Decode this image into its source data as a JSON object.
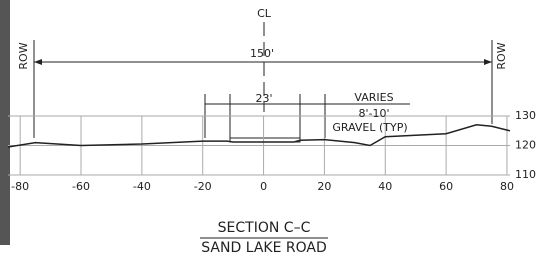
{
  "chart_data": {
    "type": "line",
    "title": "SECTION C–C",
    "subtitle": "SAND LAKE ROAD",
    "annotations": {
      "centerline": "CL",
      "row_left": "ROW",
      "row_right": "ROW",
      "width": "150'",
      "pavement": "23'",
      "varies": "VARIES",
      "shoulder": "8'-10'",
      "material": "GRAVEL (TYP)"
    },
    "x": [
      -84,
      -75,
      -60,
      -40,
      -20,
      -12,
      -10,
      10,
      12,
      20,
      30,
      35,
      40,
      60,
      70,
      75,
      81
    ],
    "values": [
      119.5,
      121,
      120,
      120.5,
      121.5,
      121.5,
      121.2,
      121.2,
      121.8,
      122,
      121,
      120,
      123,
      124,
      127,
      126.5,
      125
    ],
    "color": "#222222",
    "xlim": [
      -84,
      81
    ],
    "ylim": [
      110,
      130
    ],
    "xticks": [
      -80,
      -60,
      -40,
      -20,
      0,
      20,
      40,
      60,
      80
    ],
    "yticks": [
      110,
      120,
      130
    ],
    "grid": true
  }
}
